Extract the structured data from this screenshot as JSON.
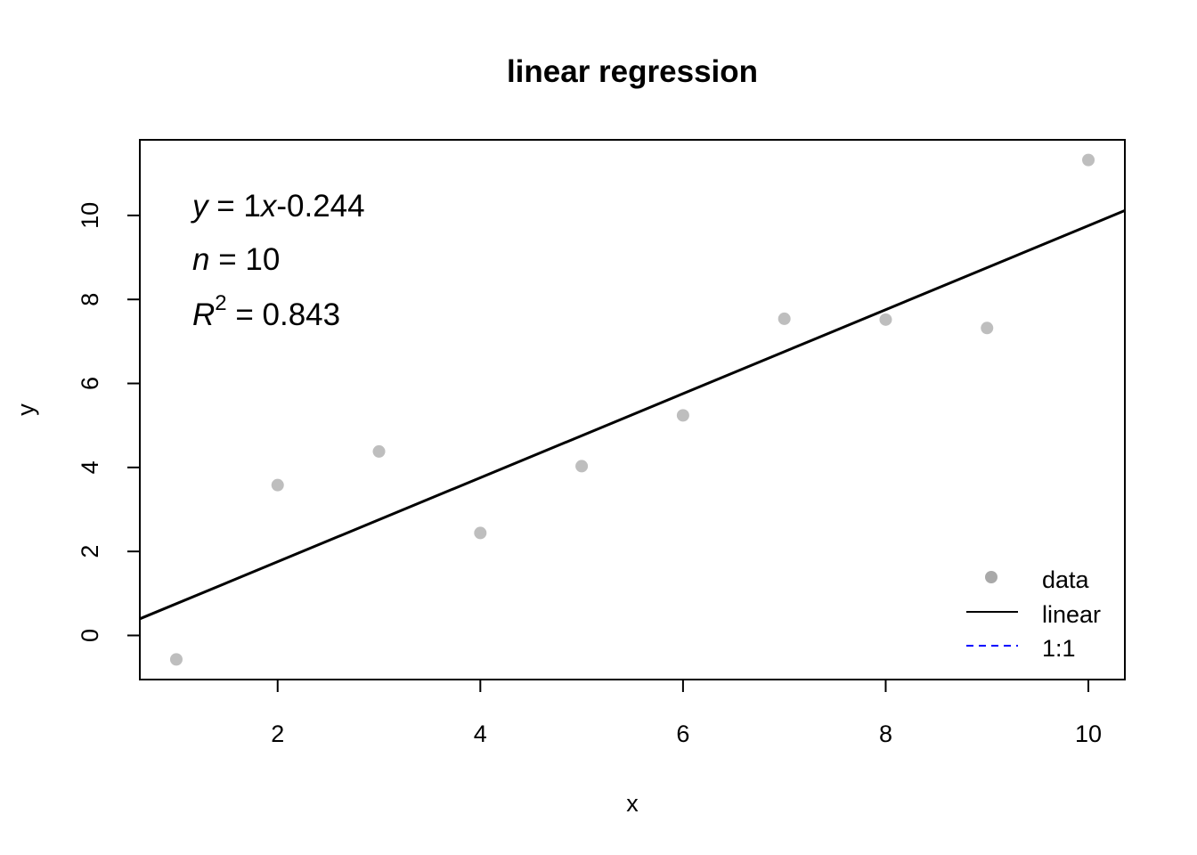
{
  "chart_data": {
    "type": "scatter",
    "title": "linear regression",
    "xlabel": "x",
    "ylabel": "y",
    "xlim": [
      0.64,
      10.36
    ],
    "ylim": [
      -1.05,
      11.8
    ],
    "x_ticks": [
      2,
      4,
      6,
      8,
      10
    ],
    "y_ticks": [
      0,
      2,
      4,
      6,
      8,
      10
    ],
    "grid": false,
    "series": [
      {
        "name": "data",
        "kind": "points",
        "color": "#bebebe",
        "x": [
          1,
          2,
          3,
          4,
          5,
          6,
          7,
          8,
          9,
          10
        ],
        "y": [
          -0.57,
          3.58,
          4.38,
          2.44,
          4.03,
          5.24,
          7.54,
          7.52,
          7.32,
          11.32
        ]
      },
      {
        "name": "linear",
        "kind": "line",
        "color": "#000000",
        "slope": 1.0,
        "intercept": -0.244
      },
      {
        "name": "1:1",
        "kind": "dashed-line",
        "color": "#0000ff"
      }
    ],
    "annotations": {
      "equation": {
        "y": "y",
        "eq": " = 1",
        "x": "x",
        "rest": "-0.244"
      },
      "n": {
        "sym": "n",
        "eq": " = 10"
      },
      "r2": {
        "sym": "R",
        "sup": "2",
        "eq": " = 0.843"
      }
    },
    "legend": {
      "position": "bottom-right",
      "entries": [
        "data",
        "linear",
        "1:1"
      ]
    }
  }
}
